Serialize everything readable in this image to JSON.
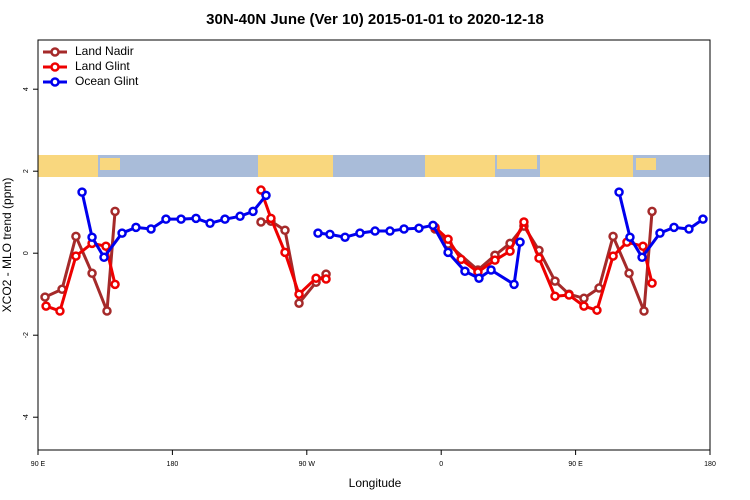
{
  "chart_data": {
    "type": "line",
    "title": "30N-40N June (Ver 10)   2015-01-01 to 2020-12-18",
    "x_label": "Longitude",
    "y_label": "XCO2 - MLO trend (ppm)",
    "xlim": [
      90,
      540
    ],
    "ylim": [
      -4.8,
      5.2
    ],
    "xticks": [
      {
        "value": 90,
        "label": "90 E"
      },
      180,
      {
        "value": 270,
        "label": "90 W"
      },
      {
        "value": 360,
        "label": "0"
      },
      {
        "value": 450,
        "label": "90 E"
      },
      180
    ],
    "yticks": [
      -4,
      -2,
      0,
      2,
      4
    ],
    "legend": "top-left",
    "series": [
      {
        "name": "Land Nadir",
        "color": "#a52a2a",
        "x": [
          94.7,
          106.1,
          115.4,
          126.2,
          136.2,
          141.6,
          null,
          239.3,
          246,
          255.4,
          264.8,
          276.2,
          282.9,
          null,
          355.9,
          364.6,
          384.6,
          396,
          406.1,
          415.4,
          425.5,
          436.2,
          445.6,
          455.6,
          465.7,
          475.1,
          485.8,
          495.8,
          501.2
        ],
        "values": [
          -1.07,
          -0.88,
          0.41,
          -0.49,
          -1.41,
          1.02,
          null,
          0.76,
          0.78,
          0.56,
          -1.22,
          -0.71,
          -0.51,
          null,
          0.59,
          0.22,
          -0.41,
          -0.05,
          0.24,
          0.66,
          0.07,
          -0.68,
          -1.0,
          -1.1,
          -0.85,
          0.41,
          -0.49,
          -1.41,
          1.02
        ]
      },
      {
        "name": "Land Glint",
        "color": "#ee0000",
        "x": [
          95.4,
          104.7,
          115.4,
          126.2,
          135.5,
          141.6,
          null,
          239.3,
          246,
          255.4,
          264.8,
          276.2,
          282.9,
          null,
          355.9,
          364.6,
          373.3,
          384.6,
          396,
          406.1,
          415.4,
          425.5,
          436.2,
          445.6,
          455.6,
          464.3,
          475.1,
          484.4,
          495.1,
          501.2
        ],
        "values": [
          -1.29,
          -1.41,
          -0.07,
          0.24,
          0.17,
          -0.76,
          null,
          1.54,
          0.85,
          0.02,
          -1.0,
          -0.61,
          -0.63,
          null,
          0.63,
          0.34,
          -0.15,
          -0.46,
          -0.17,
          0.05,
          0.76,
          -0.12,
          -1.05,
          -1.02,
          -1.29,
          -1.39,
          -0.07,
          0.27,
          0.17,
          -0.73
        ]
      },
      {
        "name": "Ocean Glint",
        "color": "#0000ee",
        "x": [
          119.5,
          126.2,
          134.2,
          146.3,
          155.6,
          165.7,
          175.7,
          185.8,
          195.8,
          205.2,
          215.2,
          225.3,
          234,
          242.7,
          null,
          277.5,
          285.5,
          295.6,
          305.6,
          315.7,
          325.7,
          335.1,
          345.1,
          354.5,
          364.6,
          375.9,
          385.3,
          393.4,
          408.8,
          412.8,
          null,
          479.1,
          486.4,
          494.5,
          506.5,
          515.9,
          525.9,
          535.3
        ],
        "values": [
          1.49,
          0.39,
          -0.1,
          0.49,
          0.63,
          0.59,
          0.83,
          0.83,
          0.85,
          0.73,
          0.83,
          0.9,
          1.02,
          1.41,
          null,
          0.49,
          0.46,
          0.39,
          0.49,
          0.54,
          0.54,
          0.59,
          0.61,
          0.68,
          0.02,
          -0.44,
          -0.61,
          -0.41,
          -0.76,
          0.27,
          null,
          1.49,
          0.39,
          -0.1,
          0.49,
          0.63,
          0.59,
          0.83
        ]
      }
    ]
  }
}
